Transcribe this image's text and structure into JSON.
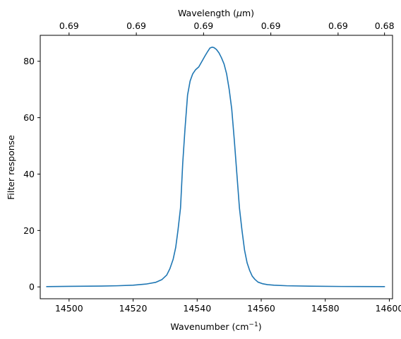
{
  "chart_data": {
    "type": "line",
    "xlabel": "Wavenumber (cm",
    "xlabel_sup": "−1",
    "xlabel_end": ")",
    "ylabel": "Filter response",
    "top_xlabel_pre": "Wavelength (",
    "top_xlabel_mu": "μ",
    "top_xlabel_post": "m)",
    "xlim": [
      14491,
      14601
    ],
    "ylim": [
      -4.2,
      89.2
    ],
    "xticks": [
      14500,
      14520,
      14540,
      14560,
      14580,
      14600
    ],
    "yticks": [
      0,
      20,
      40,
      60,
      80
    ],
    "top_ticks": [
      {
        "x": 14500,
        "label": "0.69"
      },
      {
        "x": 14521,
        "label": "0.69"
      },
      {
        "x": 14542,
        "label": "0.69"
      },
      {
        "x": 14563,
        "label": "0.69"
      },
      {
        "x": 14584,
        "label": "0.69"
      },
      {
        "x": 14598.5,
        "label": "0.68"
      }
    ],
    "line_color": "#1f77b4",
    "series": [
      {
        "x": [
          14493,
          14500,
          14510,
          14515,
          14520,
          14524,
          14527,
          14529,
          14530.5,
          14531.5,
          14532.5,
          14533.3,
          14534,
          14534.8,
          14535.5,
          14536.2,
          14537,
          14537.8,
          14538.6,
          14539.5,
          14540.5,
          14541.5,
          14542.5,
          14543.3,
          14544,
          14544.7,
          14545.3,
          14546,
          14546.8,
          14547.6,
          14548.4,
          14549.2,
          14550,
          14550.8,
          14551.6,
          14552.4,
          14553.2,
          14554,
          14554.8,
          14555.6,
          14556.4,
          14557.2,
          14558,
          14559,
          14560.5,
          14562,
          14564,
          14568,
          14575,
          14585,
          14598.5
        ],
        "y": [
          0.1,
          0.2,
          0.3,
          0.4,
          0.6,
          1.0,
          1.6,
          2.6,
          4.2,
          6.5,
          9.8,
          14,
          20,
          28,
          44,
          56,
          68,
          73,
          75.5,
          77,
          78,
          80,
          82,
          83.5,
          84.7,
          85,
          84.8,
          84.2,
          83,
          81.2,
          79,
          75.5,
          70,
          63,
          52,
          40,
          28,
          20,
          13,
          8.5,
          5.8,
          3.8,
          2.7,
          1.7,
          1.1,
          0.8,
          0.6,
          0.4,
          0.25,
          0.15,
          0.1
        ]
      }
    ]
  }
}
